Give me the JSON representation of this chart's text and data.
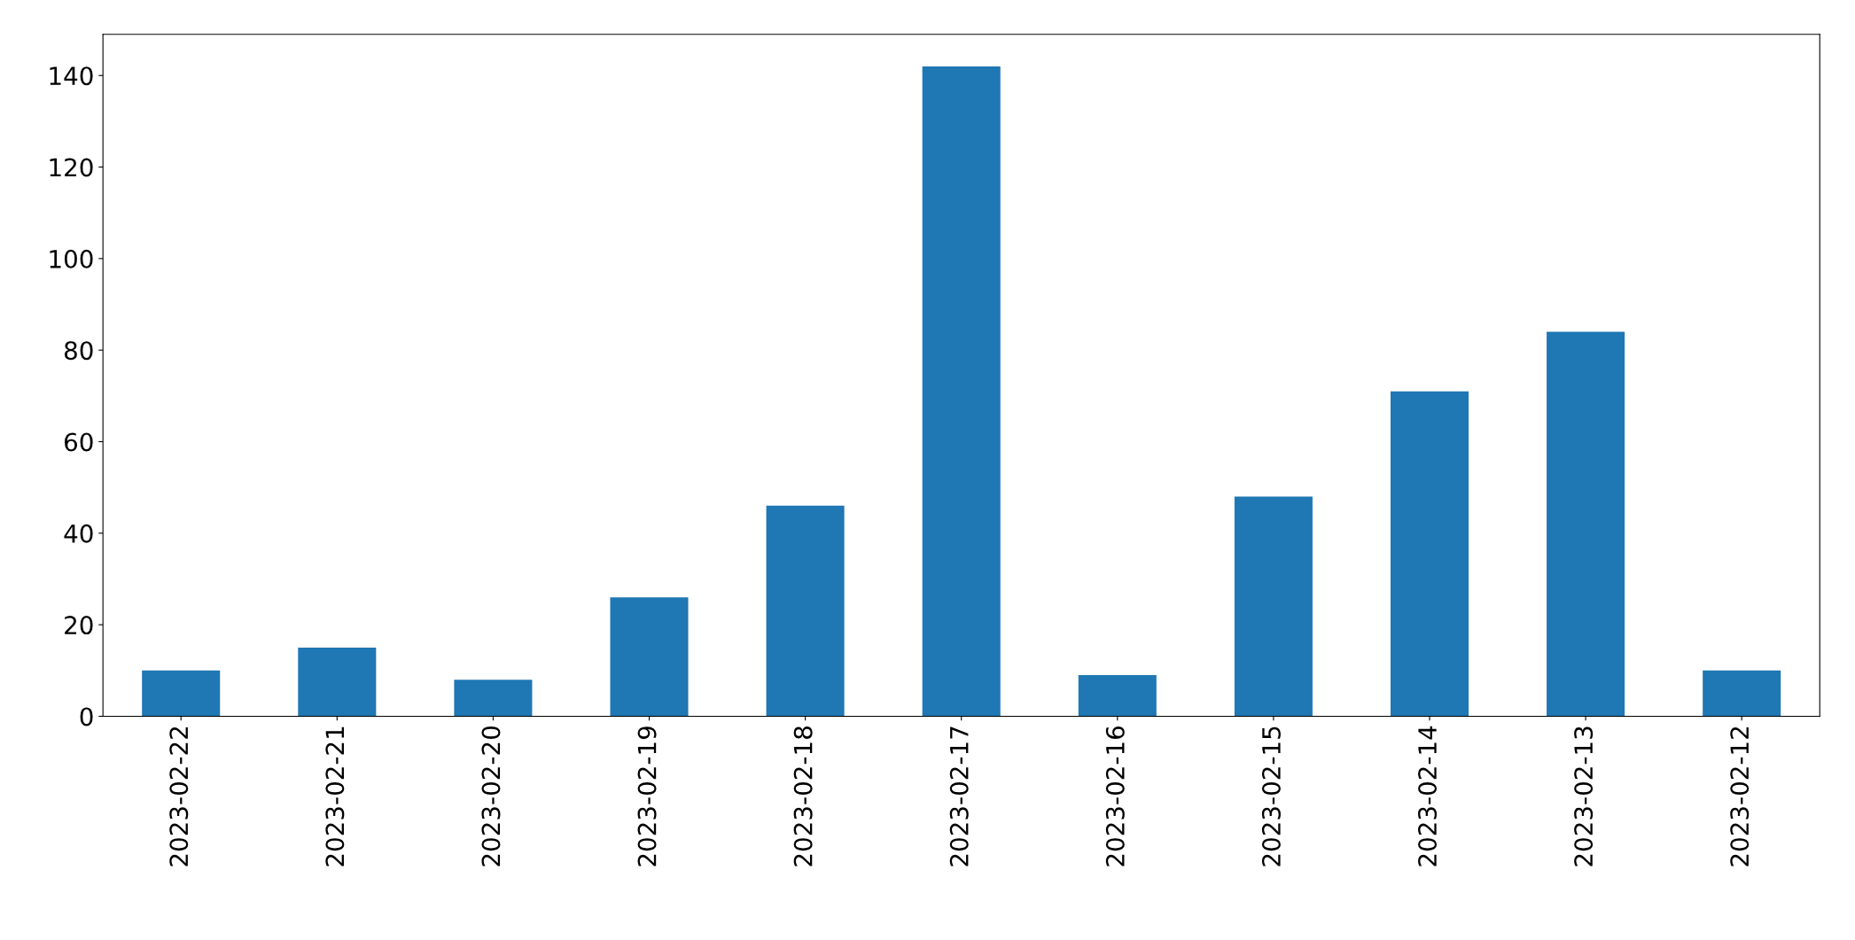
{
  "chart_data": {
    "type": "bar",
    "categories": [
      "2023-02-22",
      "2023-02-21",
      "2023-02-20",
      "2023-02-19",
      "2023-02-18",
      "2023-02-17",
      "2023-02-16",
      "2023-02-15",
      "2023-02-14",
      "2023-02-13",
      "2023-02-12"
    ],
    "values": [
      10,
      15,
      8,
      26,
      46,
      142,
      9,
      48,
      71,
      84,
      10
    ],
    "color": "#1f77b4",
    "ylim": [
      0,
      149
    ],
    "yticks": [
      0,
      20,
      40,
      60,
      80,
      100,
      120,
      140
    ],
    "grid": false,
    "legend": false
  }
}
